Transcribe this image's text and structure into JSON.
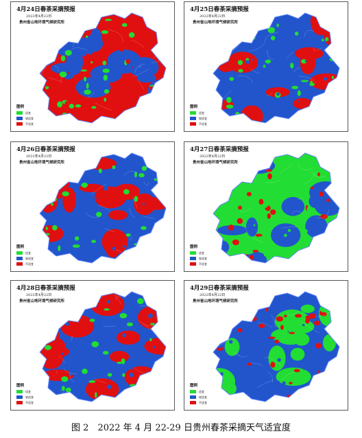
{
  "colors": {
    "suitable": "#22dd33",
    "less_suitable": "#2255cc",
    "unsuitable": "#e01010",
    "outline": "#6688ff"
  },
  "legend": {
    "title": "图例",
    "items": [
      {
        "label": "适宜",
        "color": "#22dd33",
        "key": "suitable"
      },
      {
        "label": "较适宜",
        "color": "#2255cc",
        "key": "less_suitable"
      },
      {
        "label": "不适宜",
        "color": "#e01010",
        "key": "unsuitable"
      }
    ]
  },
  "panels": [
    {
      "title": "4月24日春茶采摘预报",
      "date": "2022年4月22日",
      "org": "贵州省山地环境气候研究所",
      "dominant": "unsuitable",
      "secondary": "less_suitable",
      "minor": "suitable"
    },
    {
      "title": "4月25日春茶采摘预报",
      "date": "2022年4月22日",
      "org": "贵州省山地环境气候研究所",
      "dominant": "less_suitable",
      "secondary": "unsuitable",
      "minor": "suitable"
    },
    {
      "title": "4月26日春茶采摘预报",
      "date": "2022年4月22日",
      "org": "贵州省山地环境气候研究所",
      "dominant": "less_suitable",
      "secondary": "unsuitable",
      "minor": "suitable"
    },
    {
      "title": "4月27日春茶采摘预报",
      "date": "2022年4月22日",
      "org": "贵州省山地环境气候研究所",
      "dominant": "suitable",
      "secondary": "less_suitable",
      "minor": "unsuitable"
    },
    {
      "title": "4月28日春茶采摘预报",
      "date": "2022年4月22日",
      "org": "贵州省山地环境气候研究所",
      "dominant": "less_suitable",
      "secondary": "unsuitable",
      "minor": "suitable"
    },
    {
      "title": "4月29日春茶采摘预报",
      "date": "2022年4月22日",
      "org": "贵州省山地环境气候研究所",
      "dominant": "less_suitable",
      "secondary": "suitable",
      "minor": "unsuitable"
    }
  ],
  "caption": "图 2　2022 年 4 月 22-29 日贵州春茶采摘天气适宜度"
}
